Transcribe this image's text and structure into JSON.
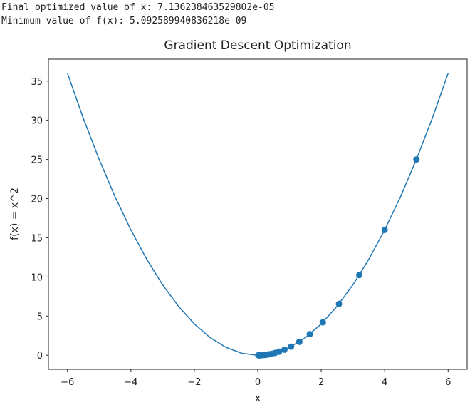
{
  "console": {
    "lines": [
      "Final optimized value of x: 7.136238463529802e-05",
      "Minimum value of f(x): 5.092589940836218e-09"
    ]
  },
  "chart_data": {
    "type": "line",
    "title": "Gradient Descent Optimization",
    "xlabel": "x",
    "ylabel": "f(x) = x^2",
    "xlim": [
      -6.6,
      6.6
    ],
    "ylim": [
      -1.8,
      37.8
    ],
    "xticks": [
      {
        "value": -6,
        "label": "−6"
      },
      {
        "value": -4,
        "label": "−4"
      },
      {
        "value": -2,
        "label": "−2"
      },
      0,
      2,
      4,
      6
    ],
    "yticks": [
      0,
      5,
      10,
      15,
      20,
      25,
      30,
      35
    ],
    "series": [
      {
        "type": "line",
        "color": "#1f77b4",
        "x": [
          -6,
          -5.5,
          -5,
          -4.5,
          -4,
          -3.5,
          -3,
          -2.5,
          -2,
          -1.5,
          -1,
          -0.5,
          0,
          0.5,
          1,
          1.5,
          2,
          2.5,
          3,
          3.5,
          4,
          4.5,
          5,
          5.5,
          6
        ],
        "values": [
          36,
          30.25,
          25,
          20.25,
          16,
          12.25,
          9,
          6.25,
          4,
          2.25,
          1,
          0.25,
          0,
          0.25,
          1,
          2.25,
          4,
          6.25,
          9,
          12.25,
          16,
          20.25,
          25,
          30.25,
          36
        ]
      },
      {
        "type": "scatter",
        "color": "#1f77b4",
        "x": [
          5,
          4,
          3.2,
          2.56,
          2.05,
          1.64,
          1.31,
          1.05,
          0.84,
          0.67,
          0.54,
          0.43,
          0.34,
          0.27,
          0.22,
          0.18,
          0.14,
          0.11,
          0.09,
          0.07,
          0.06,
          0.05,
          0.04,
          0.03,
          0.02
        ],
        "values": [
          25,
          16,
          10.24,
          6.55,
          4.2,
          2.69,
          1.72,
          1.1,
          0.71,
          0.45,
          0.29,
          0.18,
          0.12,
          0.07,
          0.05,
          0.03,
          0.02,
          0.01,
          0.01,
          0,
          0,
          0,
          0,
          0,
          0
        ]
      }
    ]
  }
}
